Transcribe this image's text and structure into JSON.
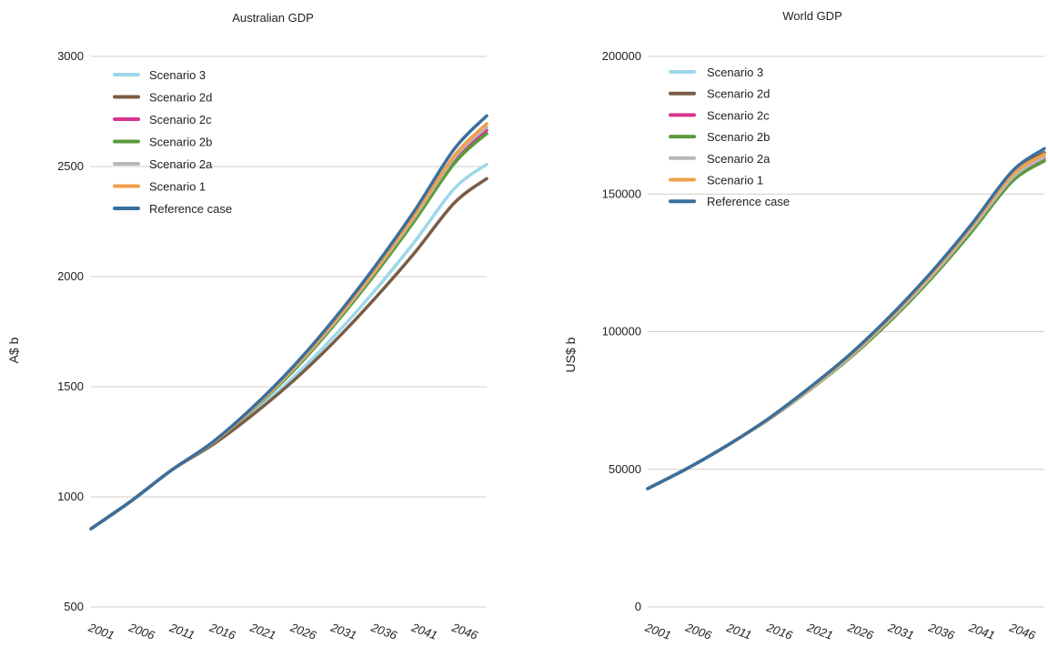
{
  "chart_data": [
    {
      "type": "line",
      "title": "Australian GDP",
      "ylabel": "A$ b",
      "xlabel": "",
      "ylim": [
        500,
        3000
      ],
      "yticks": [
        500,
        1000,
        1500,
        2000,
        2500,
        3000
      ],
      "x": [
        2001,
        2006,
        2011,
        2016,
        2021,
        2026,
        2031,
        2036,
        2041,
        2046,
        2050
      ],
      "xticks": [
        "2001",
        "2006",
        "2011",
        "2016",
        "2021",
        "2026",
        "2031",
        "2036",
        "2041",
        "2046"
      ],
      "grid": "horizontal",
      "legend_position": "top-left",
      "series": [
        {
          "name": "Scenario 3",
          "color": "#9dd7ea",
          "values": [
            855,
            982,
            1122,
            1238,
            1380,
            1540,
            1725,
            1930,
            2155,
            2400,
            2510
          ]
        },
        {
          "name": "Scenario 2d",
          "color": "#7a5c45",
          "values": [
            855,
            982,
            1122,
            1235,
            1372,
            1525,
            1700,
            1895,
            2105,
            2335,
            2445
          ]
        },
        {
          "name": "Scenario 2c",
          "color": "#d6338e",
          "values": [
            855,
            982,
            1122,
            1244,
            1398,
            1575,
            1780,
            2010,
            2260,
            2530,
            2665
          ]
        },
        {
          "name": "Scenario 2b",
          "color": "#5a9a3b",
          "values": [
            855,
            982,
            1122,
            1243,
            1396,
            1570,
            1775,
            2003,
            2250,
            2515,
            2650
          ]
        },
        {
          "name": "Scenario 2a",
          "color": "#b8b8b8",
          "values": [
            855,
            982,
            1122,
            1244,
            1399,
            1578,
            1785,
            2016,
            2268,
            2540,
            2680
          ]
        },
        {
          "name": "Scenario 1",
          "color": "#f0a04b",
          "values": [
            855,
            982,
            1122,
            1245,
            1401,
            1582,
            1790,
            2022,
            2276,
            2550,
            2695
          ]
        },
        {
          "name": "Reference case",
          "color": "#3a6f9e",
          "values": [
            855,
            982,
            1122,
            1247,
            1406,
            1590,
            1802,
            2038,
            2296,
            2580,
            2730
          ]
        }
      ]
    },
    {
      "type": "line",
      "title": "World GDP",
      "ylabel": "US$ b",
      "xlabel": "",
      "ylim": [
        0,
        200000
      ],
      "yticks": [
        0,
        50000,
        100000,
        150000,
        200000
      ],
      "x": [
        2001,
        2006,
        2011,
        2016,
        2021,
        2026,
        2031,
        2036,
        2041,
        2046,
        2050
      ],
      "xticks": [
        "2001",
        "2006",
        "2011",
        "2016",
        "2021",
        "2026",
        "2031",
        "2036",
        "2041",
        "2046"
      ],
      "grid": "horizontal",
      "legend_position": "top-left",
      "series": [
        {
          "name": "Scenario 3",
          "color": "#9dd7ea",
          "values": [
            43000,
            50500,
            59000,
            68500,
            79500,
            91500,
            105500,
            121000,
            138500,
            157500,
            165000
          ]
        },
        {
          "name": "Scenario 2d",
          "color": "#7a5c45",
          "values": [
            43000,
            50500,
            59000,
            68500,
            79500,
            91500,
            105500,
            121000,
            138500,
            157500,
            165000
          ]
        },
        {
          "name": "Scenario 2c",
          "color": "#d6338e",
          "values": [
            43000,
            50500,
            59000,
            68300,
            79000,
            90800,
            104500,
            119800,
            137000,
            155500,
            163000
          ]
        },
        {
          "name": "Scenario 2b",
          "color": "#5a9a3b",
          "values": [
            43000,
            50500,
            59000,
            68200,
            78800,
            90500,
            104000,
            119200,
            136200,
            154500,
            162000
          ]
        },
        {
          "name": "Scenario 2a",
          "color": "#b8b8b8",
          "values": [
            43000,
            50500,
            59000,
            68300,
            79000,
            90900,
            104700,
            120000,
            137300,
            155800,
            163500
          ]
        },
        {
          "name": "Scenario 1",
          "color": "#f0a04b",
          "values": [
            43000,
            50500,
            59000,
            68500,
            79400,
            91400,
            105300,
            120800,
            138200,
            157000,
            164500
          ]
        },
        {
          "name": "Reference case",
          "color": "#3a6f9e",
          "values": [
            43000,
            50500,
            59000,
            68600,
            79700,
            91800,
            105800,
            121500,
            139000,
            158200,
            166500
          ]
        }
      ]
    }
  ]
}
